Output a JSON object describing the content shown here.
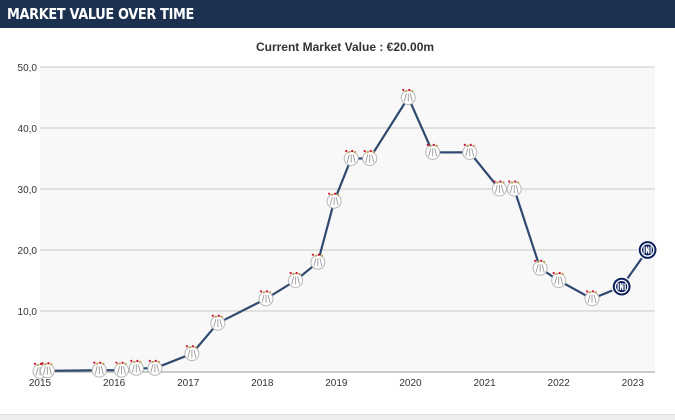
{
  "header": {
    "title": "MARKET VALUE OVER TIME"
  },
  "chart_data": {
    "type": "line",
    "title": "Current Market Value : €20.00m",
    "xlabel": "",
    "ylabel": "",
    "x_ticks": [
      "2015",
      "2016",
      "2017",
      "2018",
      "2019",
      "2020",
      "2021",
      "2022",
      "2023"
    ],
    "y_ticks": [
      "10,0",
      "20,0",
      "30,0",
      "40,0",
      "50,0"
    ],
    "xlim": [
      2015,
      2023.3
    ],
    "ylim": [
      0,
      50
    ],
    "grid": true,
    "series": [
      {
        "points": [
          {
            "x": 2015.0,
            "y": 0.1,
            "club": "ajax"
          },
          {
            "x": 2015.1,
            "y": 0.2,
            "club": "ajax"
          },
          {
            "x": 2015.8,
            "y": 0.3,
            "club": "ajax"
          },
          {
            "x": 2016.1,
            "y": 0.3,
            "club": "ajax"
          },
          {
            "x": 2016.3,
            "y": 0.6,
            "club": "ajax"
          },
          {
            "x": 2016.55,
            "y": 0.6,
            "club": "ajax"
          },
          {
            "x": 2017.05,
            "y": 3.0,
            "club": "ajax"
          },
          {
            "x": 2017.4,
            "y": 8.0,
            "club": "ajax"
          },
          {
            "x": 2018.05,
            "y": 12.0,
            "club": "ajax"
          },
          {
            "x": 2018.45,
            "y": 15.0,
            "club": "ajax"
          },
          {
            "x": 2018.75,
            "y": 18.0,
            "club": "ajax"
          },
          {
            "x": 2018.97,
            "y": 28.0,
            "club": "ajax"
          },
          {
            "x": 2019.2,
            "y": 35.0,
            "club": "ajax"
          },
          {
            "x": 2019.45,
            "y": 35.0,
            "club": "ajax"
          },
          {
            "x": 2019.97,
            "y": 45.0,
            "club": "ajax"
          },
          {
            "x": 2020.3,
            "y": 36.0,
            "club": "ajax"
          },
          {
            "x": 2020.8,
            "y": 36.0,
            "club": "ajax"
          },
          {
            "x": 2021.2,
            "y": 30.0,
            "club": "ajax"
          },
          {
            "x": 2021.4,
            "y": 30.0,
            "club": "ajax"
          },
          {
            "x": 2021.75,
            "y": 17.0,
            "club": "ajax"
          },
          {
            "x": 2022.0,
            "y": 15.0,
            "club": "ajax"
          },
          {
            "x": 2022.45,
            "y": 12.0,
            "club": "ajax"
          },
          {
            "x": 2022.85,
            "y": 14.0,
            "club": "inter"
          },
          {
            "x": 2023.2,
            "y": 20.0,
            "club": "inter"
          }
        ]
      }
    ],
    "colors": {
      "line": "#2f4a70",
      "ajax_red": "#d2122e",
      "ajax_gold": "#c8a24a",
      "inter_navy": "#0b1f5c",
      "grid": "#c8c8c8",
      "plot_bg": "#f8f8f8"
    }
  }
}
